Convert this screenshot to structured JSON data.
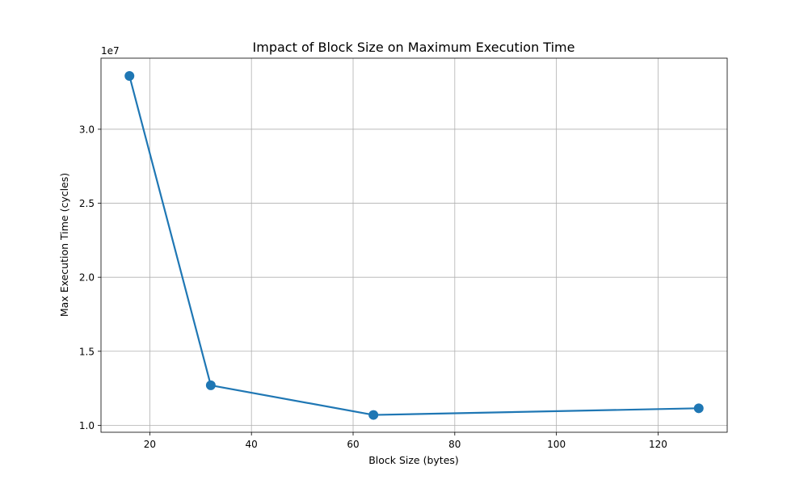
{
  "chart_data": {
    "type": "line",
    "title": "Impact of Block Size on Maximum Execution Time",
    "xlabel": "Block Size (bytes)",
    "ylabel": "Max Execution Time (cycles)",
    "y_offset_label": "1e7",
    "x": [
      16,
      32,
      64,
      128
    ],
    "series": [
      {
        "values": [
          33600000,
          12700000,
          10700000,
          11150000
        ],
        "color": "#1f77b4"
      }
    ],
    "xlim": [
      10.4,
      133.6
    ],
    "ylim": [
      9530000,
      34800000
    ],
    "x_ticks": [
      20,
      40,
      60,
      80,
      100,
      120
    ],
    "x_tick_labels": [
      "20",
      "40",
      "60",
      "80",
      "100",
      "120"
    ],
    "y_ticks": [
      10000000,
      15000000,
      20000000,
      25000000,
      30000000
    ],
    "y_tick_labels": [
      "1.0",
      "1.5",
      "2.0",
      "2.5",
      "3.0"
    ],
    "grid": true,
    "marker": "circle"
  }
}
